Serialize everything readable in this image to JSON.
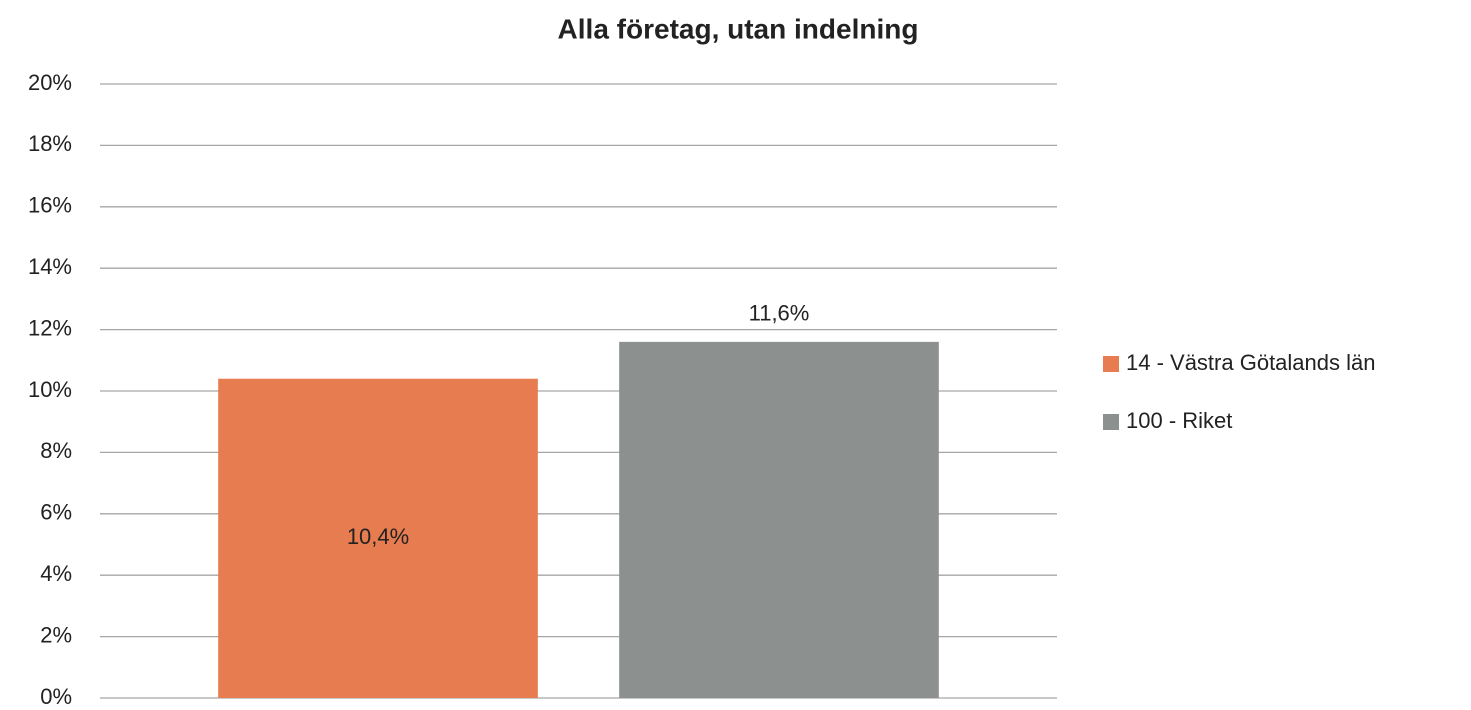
{
  "chart_data": {
    "type": "bar",
    "title": "Alla företag, utan indelning",
    "categories": [
      null
    ],
    "series": [
      {
        "name": "14 - Västra Götalands län",
        "color": "#e67c50",
        "values": [
          10.4
        ],
        "value_labels": [
          "10,4%"
        ],
        "label_position": "center"
      },
      {
        "name": "100 - Riket",
        "color": "#8c908e",
        "values": [
          11.6
        ],
        "value_labels": [
          "11,6%"
        ],
        "label_position": "outside_end"
      }
    ],
    "ylim": [
      0,
      20
    ],
    "yticks": [
      {
        "value": 0,
        "label": "0%"
      },
      {
        "value": 2,
        "label": "2%"
      },
      {
        "value": 4,
        "label": "4%"
      },
      {
        "value": 6,
        "label": "6%"
      },
      {
        "value": 8,
        "label": "8%"
      },
      {
        "value": 10,
        "label": "10%"
      },
      {
        "value": 12,
        "label": "12%"
      },
      {
        "value": 14,
        "label": "14%"
      },
      {
        "value": 16,
        "label": "16%"
      },
      {
        "value": 18,
        "label": "18%"
      },
      {
        "value": 20,
        "label": "20%"
      }
    ],
    "grid": true,
    "legend": "right"
  }
}
